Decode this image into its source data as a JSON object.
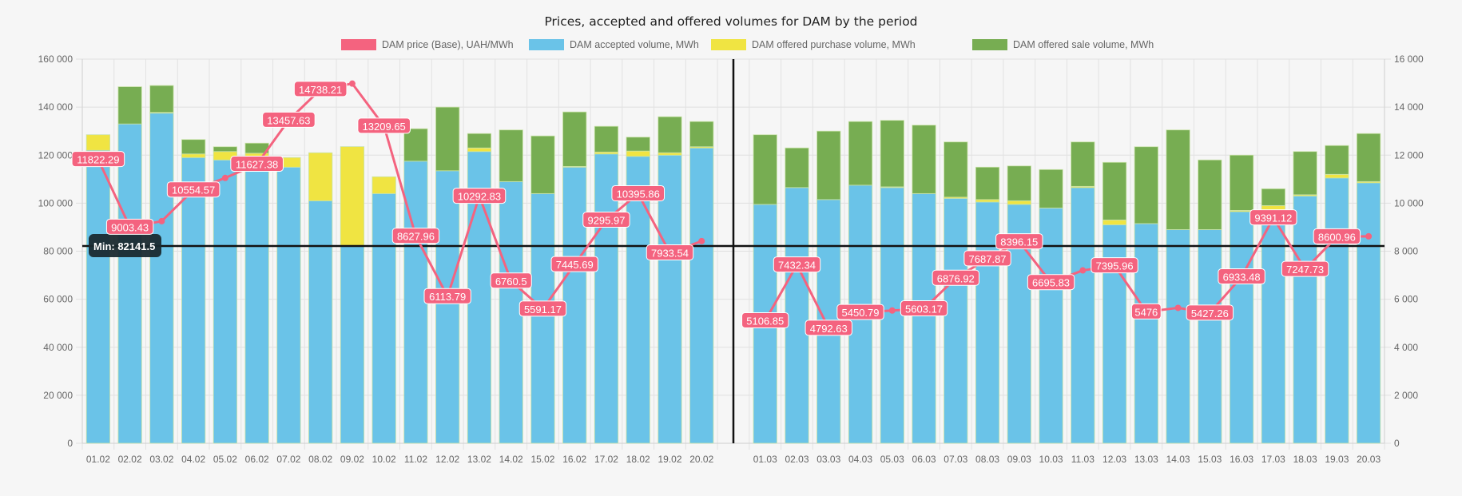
{
  "chart_data": {
    "type": "bar",
    "title": "Prices, accepted and offered volumes for DAM by the period",
    "stacked": true,
    "categories": [
      "01.02",
      "02.02",
      "03.02",
      "04.02",
      "05.02",
      "06.02",
      "07.02",
      "08.02",
      "09.02",
      "10.02",
      "11.02",
      "12.02",
      "13.02",
      "14.02",
      "15.02",
      "16.02",
      "17.02",
      "18.02",
      "19.02",
      "20.02",
      "",
      "01.03",
      "02.03",
      "03.03",
      "04.03",
      "05.03",
      "06.03",
      "07.03",
      "08.03",
      "09.03",
      "10.03",
      "11.03",
      "12.03",
      "13.03",
      "14.03",
      "15.03",
      "16.03",
      "17.03",
      "18.03",
      "19.03",
      "20.03"
    ],
    "y_left": {
      "label": "",
      "range": [
        0,
        160000
      ],
      "ticks": [
        "0",
        "20 000",
        "40 000",
        "60 000",
        "80 000",
        "100 000",
        "120 000",
        "140 000",
        "160 000"
      ]
    },
    "y_right": {
      "label": "",
      "range": [
        0,
        16000
      ],
      "ticks": [
        "0",
        "2 000",
        "4 000",
        "6 000",
        "8 000",
        "10 000",
        "12 000",
        "14 000",
        "16 000"
      ]
    },
    "grid": true,
    "legend_position": "top-center",
    "series": [
      {
        "name": "DAM price (Base), UAH/MWh",
        "type": "line",
        "axis": "right",
        "color": "#f4637f",
        "values": [
          11822.29,
          9003.43,
          9250,
          10554.57,
          11050,
          11627.38,
          13457.63,
          14738.21,
          14980,
          13209.65,
          8627.96,
          6113.79,
          10292.83,
          6760.5,
          5591.17,
          7445.69,
          9295.97,
          10395.86,
          7933.54,
          8420,
          null,
          5106.85,
          7432.34,
          4792.63,
          5450.79,
          5530,
          5603.17,
          6876.92,
          7687.87,
          8396.15,
          6695.83,
          7200,
          7395.96,
          5476,
          5640,
          5427.26,
          6933.48,
          9391.12,
          7247.73,
          8600.96,
          8620
        ],
        "labels": [
          "11822.29",
          "9003.43",
          "",
          "10554.57",
          "",
          "11627.38",
          "13457.63",
          "14738.21",
          "",
          "13209.65",
          "8627.96",
          "6113.79",
          "10292.83",
          "6760.5",
          "5591.17",
          "7445.69",
          "9295.97",
          "10395.86",
          "7933.54",
          "",
          "",
          "5106.85",
          "7432.34",
          "4792.63",
          "5450.79",
          "",
          "5603.17",
          "6876.92",
          "7687.87",
          "8396.15",
          "6695.83",
          "",
          "7395.96",
          "5476",
          "",
          "5427.26",
          "6933.48",
          "9391.12",
          "7247.73",
          "8600.96",
          ""
        ]
      },
      {
        "name": "DAM accepted volume, MWh",
        "type": "bar",
        "axis": "left",
        "color": "#6ac3e8",
        "values": [
          122000,
          133000,
          137500,
          119000,
          118000,
          119500,
          115000,
          101000,
          82141.5,
          104000,
          117500,
          113500,
          121500,
          109000,
          104000,
          115000,
          120500,
          119500,
          120000,
          123000,
          null,
          99500,
          106500,
          101500,
          107500,
          106500,
          104000,
          102000,
          100500,
          99500,
          98000,
          106500,
          91000,
          91500,
          89000,
          89000,
          96500,
          97000,
          103000,
          110500,
          108500
        ]
      },
      {
        "name": "DAM offered purchase volume, MWh",
        "type": "bar",
        "axis": "left",
        "color": "#f0e442",
        "values": [
          6500,
          0,
          300,
          1500,
          3500,
          1300,
          4000,
          20000,
          41400,
          7000,
          0,
          0,
          1500,
          0,
          0,
          300,
          800,
          2200,
          1000,
          500,
          null,
          0,
          0,
          0,
          0,
          300,
          0,
          500,
          1000,
          1500,
          0,
          500,
          2000,
          0,
          0,
          0,
          500,
          2000,
          500,
          1500,
          500
        ]
      },
      {
        "name": "DAM offered sale volume, MWh",
        "type": "bar",
        "axis": "left",
        "color": "#77ad52",
        "values": [
          0,
          15500,
          11200,
          6000,
          2000,
          4200,
          0,
          0,
          0,
          0,
          13500,
          26500,
          6000,
          21500,
          24000,
          22700,
          10700,
          5800,
          15000,
          10500,
          null,
          29000,
          16500,
          28500,
          26500,
          27700,
          28500,
          23000,
          13500,
          14500,
          16000,
          18500,
          24000,
          32000,
          41500,
          29000,
          23000,
          7000,
          18000,
          12000,
          20000
        ]
      }
    ],
    "annotations": [
      {
        "type": "horizontal-line",
        "axis": "left",
        "value": 82141.5,
        "label": "Min: 82141.5"
      },
      {
        "type": "vertical-line",
        "category_index": 20,
        "label": ""
      }
    ]
  }
}
